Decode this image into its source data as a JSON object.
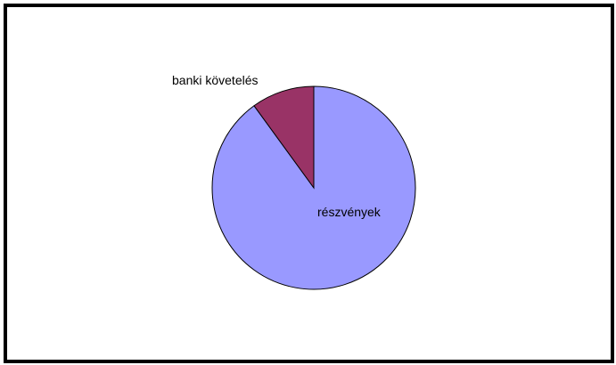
{
  "chart_data": {
    "type": "pie",
    "slices": [
      {
        "label": "részvények",
        "value": 90,
        "color": "#9999ff"
      },
      {
        "label": "banki követelés",
        "value": 10,
        "color": "#993366"
      }
    ],
    "title": "",
    "legend": "none",
    "start_angle_deg": 0,
    "direction": "clockwise"
  }
}
